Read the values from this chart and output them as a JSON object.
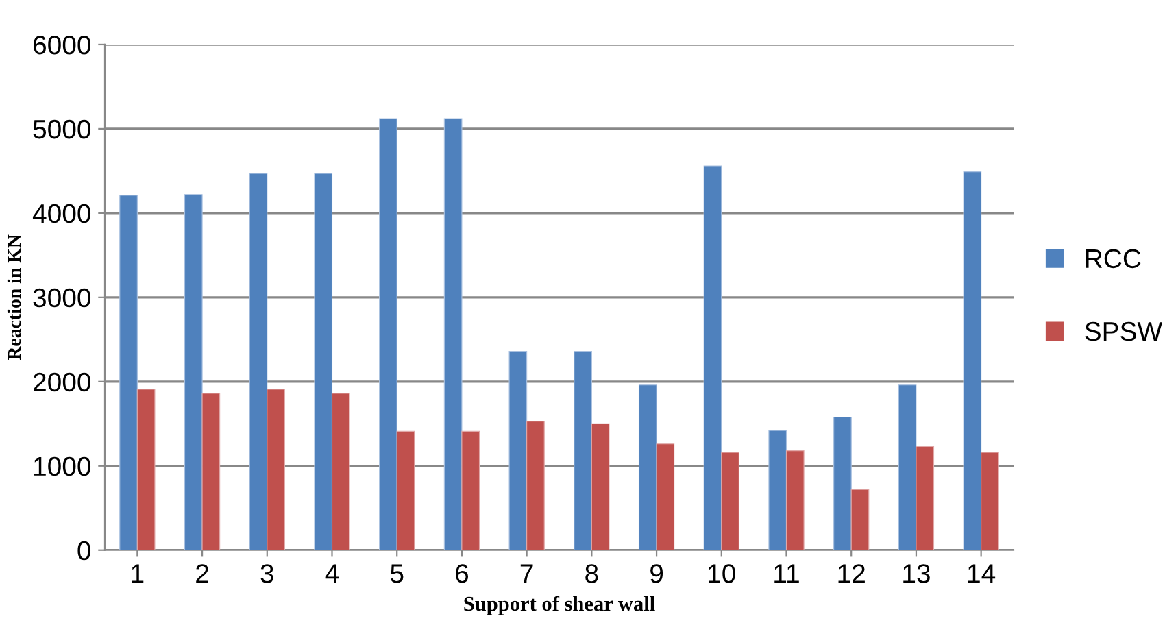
{
  "chart_data": {
    "type": "bar",
    "xlabel": "Support of shear wall",
    "ylabel": "Reaction in KN",
    "categories": [
      "1",
      "2",
      "3",
      "4",
      "5",
      "6",
      "7",
      "8",
      "9",
      "10",
      "11",
      "12",
      "13",
      "14"
    ],
    "series": [
      {
        "name": "RCC",
        "color": "#4f81bd",
        "values": [
          4210,
          4220,
          4470,
          4470,
          5120,
          5120,
          2360,
          2360,
          1960,
          4560,
          1420,
          1580,
          1960,
          4490
        ]
      },
      {
        "name": "SPSW",
        "color": "#c0504d",
        "values": [
          1910,
          1860,
          1910,
          1860,
          1410,
          1410,
          1530,
          1500,
          1260,
          1160,
          1180,
          720,
          1230,
          1160
        ]
      }
    ],
    "ylim": [
      0,
      6000
    ],
    "yticks": [
      0,
      1000,
      2000,
      3000,
      4000,
      5000,
      6000
    ],
    "grid": "y",
    "legend": "right"
  }
}
